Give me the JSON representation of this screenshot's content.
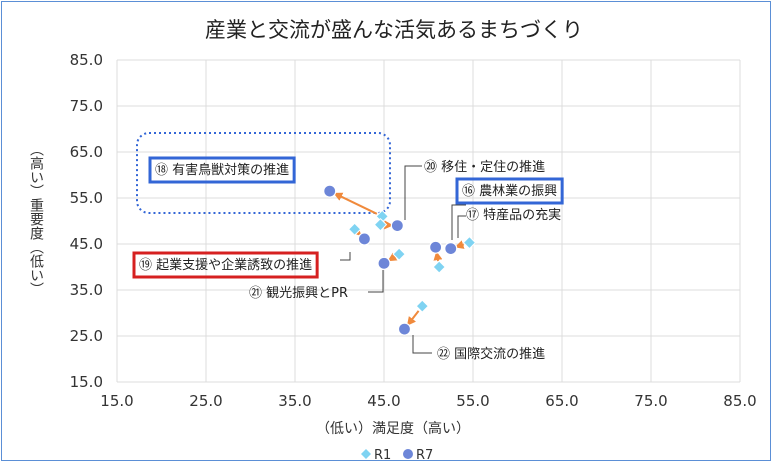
{
  "chart_data": {
    "type": "scatter",
    "title": "産業と交流が盛んな活気あるまちづくり",
    "xlabel": "（低い）満足度（高い）",
    "ylabel": "（高い）重要度（低い）",
    "xlim": [
      15.0,
      85.0
    ],
    "ylim": [
      15.0,
      85.0
    ],
    "x_ticks": [
      "15.0",
      "25.0",
      "35.0",
      "45.0",
      "55.0",
      "65.0",
      "75.0",
      "85.0"
    ],
    "y_ticks": [
      "15.0",
      "25.0",
      "35.0",
      "45.0",
      "55.0",
      "65.0",
      "75.0",
      "85.0"
    ],
    "grid": true,
    "legend_position": "bottom",
    "series": [
      {
        "name": "R1",
        "color": "#7fd3f2",
        "marker": "diamond",
        "points": [
          {
            "id": "16",
            "x": 51.2,
            "y": 40.0
          },
          {
            "id": "17",
            "x": 54.6,
            "y": 45.3
          },
          {
            "id": "18",
            "x": 44.8,
            "y": 51.0
          },
          {
            "id": "19",
            "x": 41.7,
            "y": 48.2
          },
          {
            "id": "20",
            "x": 44.6,
            "y": 49.2
          },
          {
            "id": "21",
            "x": 46.7,
            "y": 42.8
          },
          {
            "id": "22",
            "x": 49.3,
            "y": 31.5
          }
        ]
      },
      {
        "name": "R7",
        "color": "#6d86d8",
        "marker": "circle",
        "points": [
          {
            "id": "16",
            "x": 50.8,
            "y": 44.3
          },
          {
            "id": "17",
            "x": 52.5,
            "y": 44.0
          },
          {
            "id": "18",
            "x": 38.9,
            "y": 56.5
          },
          {
            "id": "19",
            "x": 42.8,
            "y": 46.1
          },
          {
            "id": "20",
            "x": 46.5,
            "y": 49.0
          },
          {
            "id": "21",
            "x": 45.0,
            "y": 40.8
          },
          {
            "id": "22",
            "x": 47.3,
            "y": 26.5
          }
        ]
      }
    ],
    "annotations": [
      {
        "id": "16",
        "text": "⑯ 農林業の振興",
        "box": "blue"
      },
      {
        "id": "17",
        "text": "⑰ 特産品の充実",
        "box": "none"
      },
      {
        "id": "18",
        "text": "⑱ 有害鳥獣対策の推進",
        "box": "blue"
      },
      {
        "id": "19",
        "text": "⑲ 起業支援や企業誘致の推進",
        "box": "red"
      },
      {
        "id": "20",
        "text": "⑳ 移住・定住の推進",
        "box": "none"
      },
      {
        "id": "21",
        "text": "㉑ 観光振興とPR",
        "box": "none"
      },
      {
        "id": "22",
        "text": "㉒ 国際交流の推進",
        "box": "none"
      }
    ],
    "colors": {
      "arrow": "#f08a3c",
      "grid": "#dcdcdc",
      "blue_box": "#3366d6",
      "red_box": "#d62020",
      "dotted_box": "#3366d6"
    }
  }
}
